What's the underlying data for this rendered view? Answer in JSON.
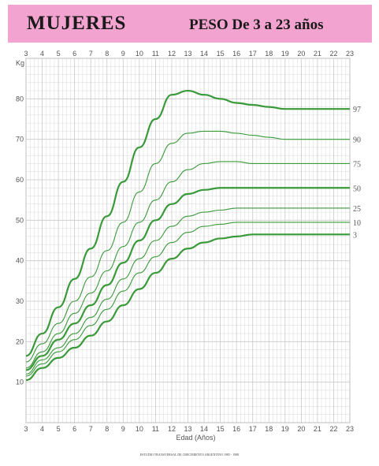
{
  "header": {
    "title": "MUJERES",
    "subtitle": "PESO  De 3 a 23 años"
  },
  "footer": {
    "note": "ESTUDIO TRANSVERSAL DE CRECIMIENTO ARGENTINO 1985 - 1988"
  },
  "colors": {
    "header_bg": "#f3a3cf",
    "grid": "#c9c9c9",
    "curve": "#3a9a3a",
    "text": "#555555"
  },
  "chart_data": {
    "type": "line",
    "title": "PESO  De 3 a 23 años",
    "xlabel": "Edad (Años)",
    "ylabel": "Kg",
    "xlim": [
      3,
      23
    ],
    "ylim": [
      0,
      90
    ],
    "x_ticks": [
      "3",
      "4",
      "5",
      "6",
      "7",
      "8",
      "9",
      "10",
      "11",
      "12",
      "13",
      "14",
      "15",
      "16",
      "17",
      "18",
      "19",
      "20",
      "21",
      "22",
      "23"
    ],
    "y_ticks": [
      "10",
      "20",
      "30",
      "40",
      "50",
      "60",
      "70",
      "80"
    ],
    "grid": true,
    "x": [
      3,
      4,
      5,
      6,
      7,
      8,
      9,
      10,
      11,
      12,
      13,
      14,
      15,
      16,
      17,
      18,
      19,
      20,
      21,
      22,
      23
    ],
    "series": [
      {
        "name": "97",
        "values": [
          16.5,
          22,
          28.5,
          35.5,
          43,
          51,
          59.5,
          68,
          75,
          81,
          82,
          81,
          80,
          79,
          78.5,
          78,
          77.5,
          77.5,
          77.5,
          77.5,
          77.5
        ],
        "bold": true
      },
      {
        "name": "90",
        "values": [
          15,
          19.5,
          24.5,
          30,
          36,
          42.5,
          49.5,
          57,
          64,
          69,
          71.5,
          72,
          72,
          71.5,
          71,
          70.5,
          70,
          70,
          70,
          70,
          70
        ],
        "bold": false
      },
      {
        "name": "75",
        "values": [
          13.5,
          17.5,
          22,
          27,
          32,
          37.5,
          43.5,
          49.5,
          55,
          59.5,
          62.5,
          64,
          64.5,
          64.5,
          64,
          64,
          64,
          64,
          64,
          64,
          64
        ],
        "bold": false
      },
      {
        "name": "50",
        "values": [
          13,
          16.5,
          20.5,
          24.5,
          29,
          34,
          39.5,
          45,
          50,
          54,
          56.5,
          57.5,
          58,
          58,
          58,
          58,
          58,
          58,
          58,
          58,
          58
        ],
        "bold": true
      },
      {
        "name": "25",
        "values": [
          12,
          15.5,
          18.5,
          22,
          26,
          30.5,
          35.5,
          40.5,
          45,
          48.5,
          51,
          52,
          52.5,
          53,
          53,
          53,
          53,
          53,
          53,
          53,
          53
        ],
        "bold": false
      },
      {
        "name": "10",
        "values": [
          11.5,
          14.5,
          17.5,
          20.5,
          24,
          28,
          32.5,
          37,
          41,
          44.5,
          47,
          48.5,
          49,
          49.5,
          49.5,
          49.5,
          49.5,
          49.5,
          49.5,
          49.5,
          49.5
        ],
        "bold": false
      },
      {
        "name": "3",
        "values": [
          10.5,
          13.5,
          16,
          18.5,
          21.5,
          25,
          29,
          33,
          37,
          40.5,
          43,
          44.5,
          45.5,
          46,
          46.5,
          46.5,
          46.5,
          46.5,
          46.5,
          46.5,
          46.5
        ],
        "bold": true
      }
    ]
  }
}
